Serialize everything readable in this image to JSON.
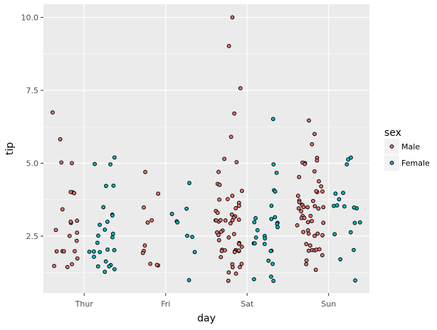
{
  "chart_data": {
    "type": "scatter",
    "title": "",
    "xlabel": "day",
    "ylabel": "tip",
    "categories": [
      "Thur",
      "Fri",
      "Sat",
      "Sun"
    ],
    "yticks": [
      "2.5",
      "5.0",
      "7.5",
      "10.0"
    ],
    "ylim": [
      0.55,
      10.45
    ],
    "grid": true,
    "position": "dodge (jitter)",
    "legend": {
      "title": "sex",
      "placement": "right"
    },
    "series": [
      {
        "name": "Male",
        "color": "#F8766D",
        "points": [
          [
            "Thur",
            6.7
          ],
          [
            "Thur",
            5.85
          ],
          [
            "Thur",
            5.0
          ],
          [
            "Thur",
            5.0
          ],
          [
            "Thur",
            4.0
          ],
          [
            "Thur",
            4.0
          ],
          [
            "Thur",
            4.0
          ],
          [
            "Thur",
            3.4
          ],
          [
            "Thur",
            3.0
          ],
          [
            "Thur",
            3.0
          ],
          [
            "Thur",
            3.0
          ],
          [
            "Thur",
            2.71
          ],
          [
            "Thur",
            2.6
          ],
          [
            "Thur",
            2.5
          ],
          [
            "Thur",
            2.3
          ],
          [
            "Thur",
            2.0
          ],
          [
            "Thur",
            2.0
          ],
          [
            "Thur",
            2.0
          ],
          [
            "Thur",
            2.0
          ],
          [
            "Thur",
            1.73
          ],
          [
            "Thur",
            1.5
          ],
          [
            "Thur",
            1.5
          ],
          [
            "Thur",
            1.44
          ],
          [
            "Fri",
            4.73
          ],
          [
            "Fri",
            4.0
          ],
          [
            "Fri",
            3.5
          ],
          [
            "Fri",
            3.0
          ],
          [
            "Fri",
            3.0
          ],
          [
            "Fri",
            2.2
          ],
          [
            "Fri",
            2.0
          ],
          [
            "Fri",
            1.92
          ],
          [
            "Fri",
            1.58
          ],
          [
            "Fri",
            1.5
          ],
          [
            "Fri",
            1.5
          ],
          [
            "Sat",
            10.0
          ],
          [
            "Sat",
            9.0
          ],
          [
            "Sat",
            7.58
          ],
          [
            "Sat",
            6.73
          ],
          [
            "Sat",
            5.92
          ],
          [
            "Sat",
            5.16
          ],
          [
            "Sat",
            5.0
          ],
          [
            "Sat",
            4.67
          ],
          [
            "Sat",
            4.3
          ],
          [
            "Sat",
            4.3
          ],
          [
            "Sat",
            4.08
          ],
          [
            "Sat",
            3.92
          ],
          [
            "Sat",
            3.76
          ],
          [
            "Sat",
            3.71
          ],
          [
            "Sat",
            3.6
          ],
          [
            "Sat",
            3.5
          ],
          [
            "Sat",
            3.48
          ],
          [
            "Sat",
            3.39
          ],
          [
            "Sat",
            3.35
          ],
          [
            "Sat",
            3.27
          ],
          [
            "Sat",
            3.18
          ],
          [
            "Sat",
            3.16
          ],
          [
            "Sat",
            3.09
          ],
          [
            "Sat",
            3.0
          ],
          [
            "Sat",
            3.0
          ],
          [
            "Sat",
            3.0
          ],
          [
            "Sat",
            3.0
          ],
          [
            "Sat",
            3.0
          ],
          [
            "Sat",
            3.0
          ],
          [
            "Sat",
            2.92
          ],
          [
            "Sat",
            2.72
          ],
          [
            "Sat",
            2.64
          ],
          [
            "Sat",
            2.6
          ],
          [
            "Sat",
            2.55
          ],
          [
            "Sat",
            2.5
          ],
          [
            "Sat",
            2.5
          ],
          [
            "Sat",
            2.34
          ],
          [
            "Sat",
            2.31
          ],
          [
            "Sat",
            2.2
          ],
          [
            "Sat",
            2.09
          ],
          [
            "Sat",
            2.03
          ],
          [
            "Sat",
            2.01
          ],
          [
            "Sat",
            2.0
          ],
          [
            "Sat",
            2.0
          ],
          [
            "Sat",
            2.0
          ],
          [
            "Sat",
            2.0
          ],
          [
            "Sat",
            2.0
          ],
          [
            "Sat",
            1.96
          ],
          [
            "Sat",
            1.8
          ],
          [
            "Sat",
            1.5
          ],
          [
            "Sat",
            1.5
          ],
          [
            "Sat",
            1.47
          ],
          [
            "Sat",
            1.47
          ],
          [
            "Sat",
            1.25
          ],
          [
            "Sat",
            1.17
          ],
          [
            "Sat",
            1.0
          ],
          [
            "Sun",
            6.5
          ],
          [
            "Sun",
            6.0
          ],
          [
            "Sun",
            5.65
          ],
          [
            "Sun",
            5.2
          ],
          [
            "Sun",
            5.14
          ],
          [
            "Sun",
            5.0
          ],
          [
            "Sun",
            5.0
          ],
          [
            "Sun",
            5.0
          ],
          [
            "Sun",
            4.73
          ],
          [
            "Sun",
            4.5
          ],
          [
            "Sun",
            4.34
          ],
          [
            "Sun",
            4.19
          ],
          [
            "Sun",
            4.08
          ],
          [
            "Sun",
            4.0
          ],
          [
            "Sun",
            4.0
          ],
          [
            "Sun",
            3.92
          ],
          [
            "Sun",
            3.76
          ],
          [
            "Sun",
            3.71
          ],
          [
            "Sun",
            3.66
          ],
          [
            "Sun",
            3.61
          ],
          [
            "Sun",
            3.55
          ],
          [
            "Sun",
            3.5
          ],
          [
            "Sun",
            3.5
          ],
          [
            "Sun",
            3.5
          ],
          [
            "Sun",
            3.5
          ],
          [
            "Sun",
            3.48
          ],
          [
            "Sun",
            3.4
          ],
          [
            "Sun",
            3.31
          ],
          [
            "Sun",
            3.23
          ],
          [
            "Sun",
            3.18
          ],
          [
            "Sun",
            3.16
          ],
          [
            "Sun",
            3.11
          ],
          [
            "Sun",
            3.02
          ],
          [
            "Sun",
            3.0
          ],
          [
            "Sun",
            3.0
          ],
          [
            "Sun",
            2.92
          ],
          [
            "Sun",
            2.74
          ],
          [
            "Sun",
            2.6
          ],
          [
            "Sun",
            2.56
          ],
          [
            "Sun",
            2.55
          ],
          [
            "Sun",
            2.5
          ],
          [
            "Sun",
            2.5
          ],
          [
            "Sun",
            2.24
          ],
          [
            "Sun",
            2.18
          ],
          [
            "Sun",
            2.0
          ],
          [
            "Sun",
            2.0
          ],
          [
            "Sun",
            2.0
          ],
          [
            "Sun",
            2.0
          ],
          [
            "Sun",
            2.0
          ],
          [
            "Sun",
            1.8
          ],
          [
            "Sun",
            1.71
          ],
          [
            "Sun",
            1.5
          ],
          [
            "Sun",
            1.32
          ]
        ]
      },
      {
        "name": "Female",
        "color": "#00BFC4",
        "points": [
          [
            "Thur",
            5.17
          ],
          [
            "Thur",
            5.0
          ],
          [
            "Thur",
            5.0
          ],
          [
            "Thur",
            4.2
          ],
          [
            "Thur",
            4.2
          ],
          [
            "Thur",
            3.5
          ],
          [
            "Thur",
            3.23
          ],
          [
            "Thur",
            3.23
          ],
          [
            "Thur",
            3.0
          ],
          [
            "Thur",
            2.92
          ],
          [
            "Thur",
            2.75
          ],
          [
            "Thur",
            2.55
          ],
          [
            "Thur",
            2.5
          ],
          [
            "Thur",
            2.5
          ],
          [
            "Thur",
            2.23
          ],
          [
            "Thur",
            2.0
          ],
          [
            "Thur",
            2.0
          ],
          [
            "Thur",
            2.0
          ],
          [
            "Thur",
            2.0
          ],
          [
            "Thur",
            2.0
          ],
          [
            "Thur",
            1.83
          ],
          [
            "Thur",
            1.68
          ],
          [
            "Thur",
            1.5
          ],
          [
            "Thur",
            1.5
          ],
          [
            "Thur",
            1.44
          ],
          [
            "Thur",
            1.36
          ],
          [
            "Thur",
            1.25
          ],
          [
            "Fri",
            4.3
          ],
          [
            "Fri",
            3.48
          ],
          [
            "Fri",
            3.25
          ],
          [
            "Fri",
            3.0
          ],
          [
            "Fri",
            3.0
          ],
          [
            "Fri",
            2.5
          ],
          [
            "Fri",
            2.5
          ],
          [
            "Fri",
            2.0
          ],
          [
            "Fri",
            1.0
          ],
          [
            "Sat",
            6.5
          ],
          [
            "Sat",
            5.0
          ],
          [
            "Sat",
            4.67
          ],
          [
            "Sat",
            4.08
          ],
          [
            "Sat",
            4.0
          ],
          [
            "Sat",
            3.5
          ],
          [
            "Sat",
            3.18
          ],
          [
            "Sat",
            3.12
          ],
          [
            "Sat",
            3.07
          ],
          [
            "Sat",
            3.0
          ],
          [
            "Sat",
            3.0
          ],
          [
            "Sat",
            2.88
          ],
          [
            "Sat",
            2.83
          ],
          [
            "Sat",
            2.75
          ],
          [
            "Sat",
            2.5
          ],
          [
            "Sat",
            2.47
          ],
          [
            "Sat",
            2.45
          ],
          [
            "Sat",
            2.3
          ],
          [
            "Sat",
            2.24
          ],
          [
            "Sat",
            2.2
          ],
          [
            "Sat",
            2.0
          ],
          [
            "Sat",
            2.0
          ],
          [
            "Sat",
            1.61
          ],
          [
            "Sat",
            1.5
          ],
          [
            "Sat",
            1.1
          ],
          [
            "Sat",
            1.0
          ],
          [
            "Sat",
            1.0
          ],
          [
            "Sun",
            5.2
          ],
          [
            "Sun",
            5.14
          ],
          [
            "Sun",
            5.0
          ],
          [
            "Sun",
            4.0
          ],
          [
            "Sun",
            4.0
          ],
          [
            "Sun",
            3.75
          ],
          [
            "Sun",
            3.6
          ],
          [
            "Sun",
            3.5
          ],
          [
            "Sun",
            3.5
          ],
          [
            "Sun",
            3.5
          ],
          [
            "Sun",
            3.48
          ],
          [
            "Sun",
            3.0
          ],
          [
            "Sun",
            3.0
          ],
          [
            "Sun",
            2.64
          ],
          [
            "Sun",
            2.6
          ],
          [
            "Sun",
            2.0
          ],
          [
            "Sun",
            1.67
          ],
          [
            "Sun",
            1.0
          ]
        ]
      }
    ]
  }
}
